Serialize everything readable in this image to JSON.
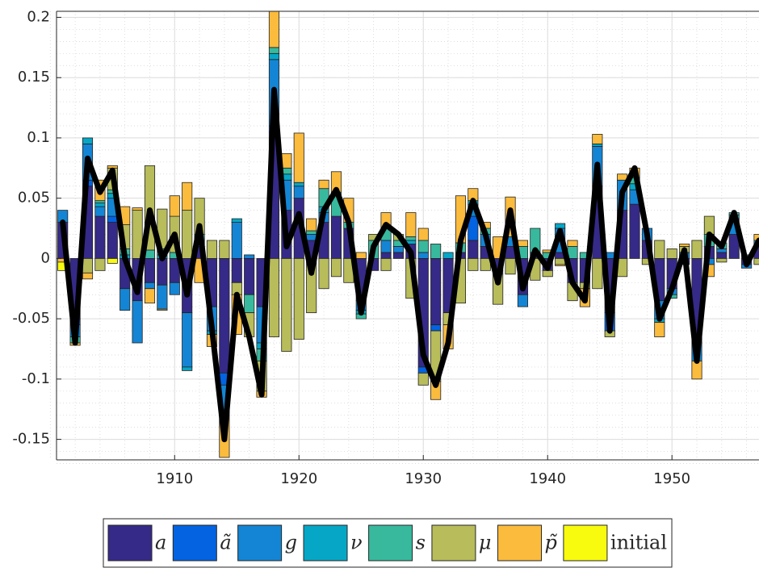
{
  "chart_data": {
    "type": "stacked_bar_line",
    "x": [
      1901,
      1902,
      1903,
      1904,
      1905,
      1906,
      1907,
      1908,
      1909,
      1910,
      1911,
      1912,
      1913,
      1914,
      1915,
      1916,
      1917,
      1918,
      1919,
      1920,
      1921,
      1922,
      1923,
      1924,
      1925,
      1926,
      1927,
      1928,
      1929,
      1930,
      1931,
      1932,
      1933,
      1934,
      1935,
      1936,
      1937,
      1938,
      1939,
      1940,
      1941,
      1942,
      1943,
      1944,
      1945,
      1946,
      1947,
      1948,
      1949,
      1950,
      1951,
      1952,
      1953,
      1954,
      1955,
      1956,
      1957
    ],
    "xlim": [
      1900.5,
      1957.0
    ],
    "xticks": [
      1910,
      1920,
      1930,
      1940,
      1950
    ],
    "ylim": [
      -0.167,
      0.205
    ],
    "yticks": [
      -0.15,
      -0.1,
      -0.05,
      0,
      0.05,
      0.1,
      0.15,
      0.2
    ],
    "grid": true,
    "minor_grid": true,
    "legend": "bottom",
    "series": [
      {
        "name": "a",
        "color": "#352a87",
        "values": [
          0.03,
          -0.05,
          0.06,
          0.035,
          0.03,
          -0.025,
          -0.035,
          -0.02,
          -0.022,
          -0.02,
          -0.045,
          0.01,
          -0.04,
          -0.095,
          -0.02,
          -0.03,
          -0.04,
          0.105,
          0.04,
          0.05,
          0.015,
          0.03,
          0.035,
          0.025,
          -0.035,
          -0.01,
          0.005,
          0.005,
          0.012,
          -0.09,
          -0.055,
          -0.045,
          0.005,
          0.015,
          0.01,
          -0.01,
          0.01,
          -0.03,
          0.005,
          -0.01,
          0.005,
          -0.02,
          -0.02,
          0.06,
          -0.045,
          0.04,
          0.045,
          0.015,
          -0.035,
          -0.025,
          -0.005,
          -0.07,
          0.01,
          0.005,
          0.02,
          -0.005,
          0.01
        ]
      },
      {
        "name": "ã",
        "color": "#0363e1",
        "values": [
          0,
          -0.005,
          0.005,
          0,
          0.005,
          0,
          0,
          0,
          0,
          0,
          0,
          0,
          0,
          -0.01,
          0,
          0,
          0,
          0.005,
          0,
          0,
          0,
          0,
          0,
          0,
          0,
          0,
          0,
          0,
          0,
          -0.005,
          -0.005,
          0,
          0,
          0.02,
          0,
          0,
          0,
          0,
          0,
          0,
          0,
          0,
          0,
          0,
          -0.015,
          0,
          0,
          0,
          0,
          0,
          0,
          0,
          0,
          0,
          0,
          0,
          0
        ]
      },
      {
        "name": "g",
        "color": "#1485d4",
        "values": [
          0.01,
          -0.01,
          0.03,
          0.008,
          0.015,
          -0.018,
          -0.035,
          -0.005,
          -0.02,
          -0.01,
          -0.045,
          0.005,
          -0.02,
          -0.02,
          0.03,
          0.003,
          -0.03,
          0.055,
          0.025,
          0.01,
          0.005,
          0.008,
          0,
          0,
          -0.008,
          0,
          0.01,
          0.005,
          0,
          0.005,
          0,
          0,
          0,
          0.01,
          0.01,
          -0.003,
          0.008,
          -0.01,
          0,
          0,
          0.02,
          0,
          0,
          0.033,
          0.005,
          0.025,
          0.012,
          0.01,
          -0.015,
          -0.005,
          0.005,
          -0.015,
          -0.005,
          0.003,
          0.013,
          -0.003,
          0.005
        ]
      },
      {
        "name": "ν",
        "color": "#06a7c6",
        "values": [
          0,
          0,
          0.005,
          0.003,
          0.004,
          0.003,
          0,
          0,
          0.003,
          0,
          -0.003,
          0,
          -0.003,
          -0.005,
          0.003,
          0,
          -0.005,
          0.005,
          0.005,
          0.003,
          0,
          0.005,
          0,
          0,
          -0.003,
          0,
          0,
          0,
          0.003,
          0,
          0,
          0.005,
          0,
          0.003,
          0,
          0,
          0,
          0,
          0,
          0,
          0.004,
          0,
          0,
          0.002,
          0,
          0,
          0.005,
          0,
          -0.003,
          0,
          0,
          0,
          0,
          0,
          0.003,
          0,
          0
        ]
      },
      {
        "name": "s",
        "color": "#38b99e",
        "values": [
          0,
          -0.005,
          0,
          0.002,
          0.003,
          0.005,
          0,
          0.007,
          0.005,
          0.005,
          0,
          0.005,
          0,
          0,
          0,
          -0.015,
          -0.01,
          0.005,
          0.005,
          0,
          0.003,
          0.015,
          0.02,
          0.005,
          -0.004,
          0.015,
          0.01,
          0.005,
          0.003,
          0.01,
          0.012,
          0,
          0.008,
          0,
          0.005,
          0,
          0,
          0.01,
          0.02,
          0.005,
          0,
          0.01,
          0.005,
          0,
          0,
          0,
          0.005,
          0,
          0,
          -0.003,
          0,
          0,
          0.01,
          0.005,
          0.002,
          0.003,
          0
        ]
      },
      {
        "name": "μ",
        "color": "#b8bc5a",
        "values": [
          0,
          0,
          -0.012,
          -0.01,
          0.018,
          0.02,
          0.04,
          0.07,
          0.033,
          0.03,
          0.04,
          0.03,
          0.015,
          0.015,
          -0.01,
          -0.02,
          -0.025,
          -0.065,
          -0.077,
          -0.067,
          -0.045,
          -0.025,
          -0.015,
          -0.02,
          0,
          0.005,
          -0.01,
          0.005,
          -0.033,
          -0.01,
          -0.042,
          -0.01,
          -0.037,
          -0.01,
          -0.01,
          -0.025,
          -0.013,
          0,
          -0.018,
          -0.005,
          -0.005,
          -0.015,
          -0.005,
          -0.025,
          -0.005,
          -0.015,
          0,
          -0.005,
          0.015,
          0.008,
          0.005,
          0.015,
          0.015,
          -0.003,
          0,
          0,
          -0.005
        ]
      },
      {
        "name": "p̃",
        "color": "#fbbb3d",
        "values": [
          -0.003,
          -0.002,
          -0.005,
          0.017,
          0.002,
          0.015,
          0.002,
          -0.012,
          -0.001,
          0.017,
          0.023,
          -0.02,
          -0.01,
          -0.035,
          -0.033,
          0,
          -0.005,
          0.03,
          0.012,
          0.041,
          0.01,
          0.007,
          0.017,
          0.02,
          0.005,
          0,
          0.013,
          0,
          0.02,
          0.01,
          -0.015,
          -0.02,
          0.039,
          0.01,
          0.005,
          0.018,
          0.033,
          0.005,
          0,
          0.002,
          -0.001,
          0.005,
          -0.015,
          0.008,
          0,
          0.005,
          0.008,
          0,
          -0.012,
          0,
          0.002,
          -0.015,
          -0.01,
          0,
          0,
          0,
          0.005
        ]
      },
      {
        "name": "initial",
        "color": "#f9fb0e",
        "values": [
          -0.007,
          0,
          0,
          0,
          -0.004,
          0,
          0,
          0,
          0,
          0,
          0,
          0,
          0,
          0,
          0,
          0,
          0,
          0,
          0,
          0,
          0,
          0,
          0,
          0,
          0,
          0,
          0,
          0,
          0,
          0,
          0,
          0,
          0,
          0,
          0,
          0,
          0,
          0,
          0,
          0,
          0,
          0,
          0,
          0,
          0,
          0,
          0,
          0,
          0,
          0,
          0,
          0,
          0,
          0,
          0,
          0,
          0
        ]
      }
    ],
    "line": {
      "color": "#000000",
      "values": [
        0.03,
        -0.07,
        0.083,
        0.055,
        0.073,
        0.0,
        -0.028,
        0.04,
        0.0,
        0.02,
        -0.03,
        0.027,
        -0.058,
        -0.15,
        -0.03,
        -0.065,
        -0.113,
        0.14,
        0.01,
        0.037,
        -0.012,
        0.04,
        0.057,
        0.03,
        -0.045,
        0.01,
        0.028,
        0.02,
        0.005,
        -0.08,
        -0.105,
        -0.07,
        0.015,
        0.048,
        0.02,
        -0.02,
        0.04,
        -0.025,
        0.007,
        -0.008,
        0.023,
        -0.02,
        -0.035,
        0.078,
        -0.06,
        0.055,
        0.075,
        0.02,
        -0.05,
        -0.025,
        0.007,
        -0.085,
        0.02,
        0.01,
        0.038,
        -0.005,
        0.015
      ]
    }
  }
}
